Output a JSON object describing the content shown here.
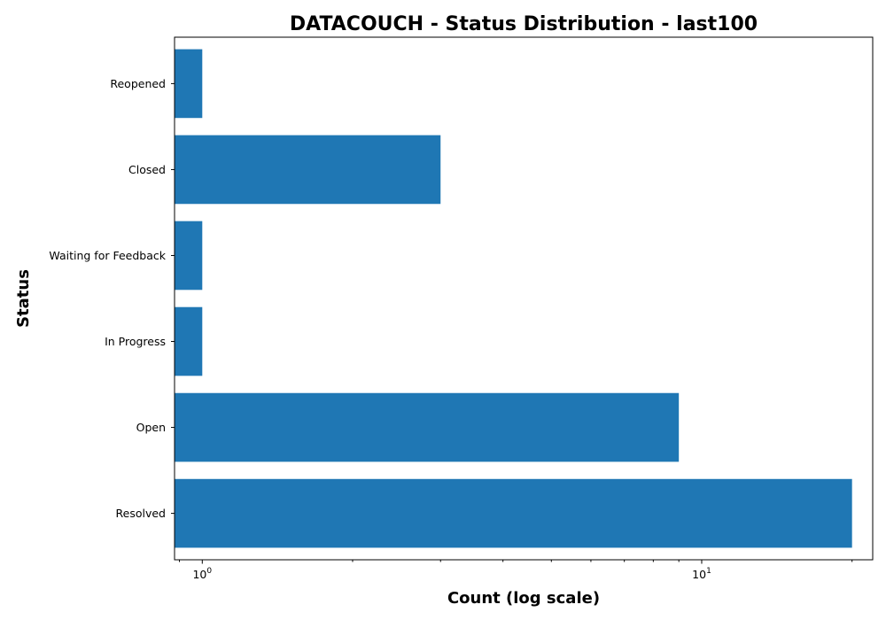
{
  "chart_data": {
    "type": "bar",
    "orientation": "horizontal",
    "title": "DATACOUCH - Status Distribution - last100",
    "xlabel": "Count (log scale)",
    "ylabel": "Status",
    "x_scale": "log",
    "xlim": [
      0.88,
      22
    ],
    "x_ticks": [
      {
        "base": "10",
        "exp": "0",
        "value": 1
      },
      {
        "base": "10",
        "exp": "1",
        "value": 10
      }
    ],
    "categories": [
      "Resolved",
      "Open",
      "In Progress",
      "Waiting for Feedback",
      "Closed",
      "Reopened"
    ],
    "values": [
      20,
      9,
      1,
      1,
      3,
      1
    ],
    "bar_color": "#1f77b4",
    "grid": false
  }
}
